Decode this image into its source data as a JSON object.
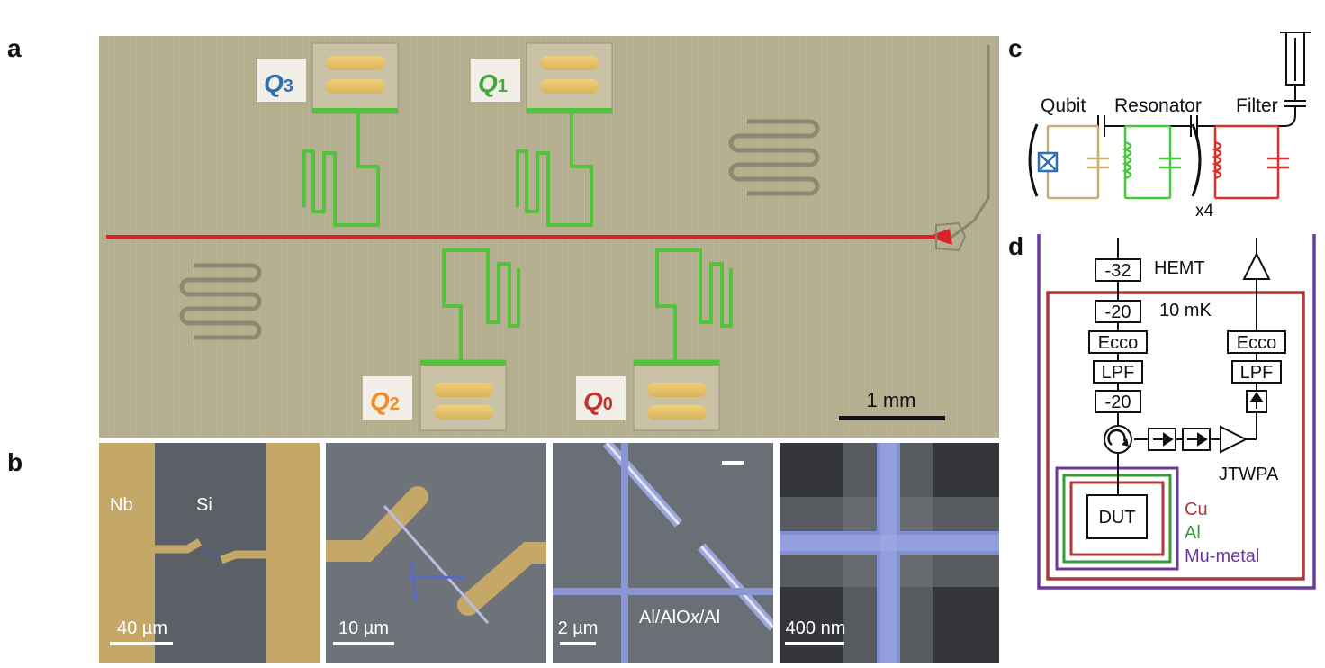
{
  "panels": {
    "a": "a",
    "b": "b",
    "c": "c",
    "d": "d"
  },
  "qubits": [
    {
      "letter": "Q",
      "sub": "3",
      "color": "#2f6fb5"
    },
    {
      "letter": "Q",
      "sub": "1",
      "color": "#46a83a"
    },
    {
      "letter": "Q",
      "sub": "2",
      "color": "#f08c2a"
    },
    {
      "letter": "Q",
      "sub": "0",
      "color": "#c8302e"
    }
  ],
  "scale_bar_a": "1 mm",
  "micrographs": {
    "nb": "Nb",
    "si": "Si",
    "scale1": "40 µm",
    "scale2": "10 µm",
    "scale3": "2 µm",
    "junction_pre": "Al/AlO",
    "junction_x": "x",
    "junction_post": "/Al",
    "scale4": "400 nm"
  },
  "circuit": {
    "qubit": "Qubit",
    "resonator": "Resonator",
    "filter": "Filter",
    "multiplier": "x4"
  },
  "wiring": {
    "att1": "-32",
    "att2": "-20",
    "ecco_left": "Ecco",
    "lpf_left": "LPF",
    "att3": "-20",
    "ecco_right": "Ecco",
    "lpf_right": "LPF",
    "hemt": "HEMT",
    "temp": "10 mK",
    "jtwpa": "JTWPA",
    "dut": "DUT",
    "legend_cu": "Cu",
    "legend_al": "Al",
    "legend_mu": "Mu-metal"
  },
  "colors": {
    "qubit_circuit": "#c9ad6a",
    "resonator_circuit": "#46c83a",
    "filter_circuit": "#e0302a",
    "feedline": "#d8232a",
    "readout_resonator": "#52c43c",
    "shield_cu": "#b0383a",
    "shield_al": "#3a9a3a",
    "shield_mu": "#6a3a9a"
  }
}
